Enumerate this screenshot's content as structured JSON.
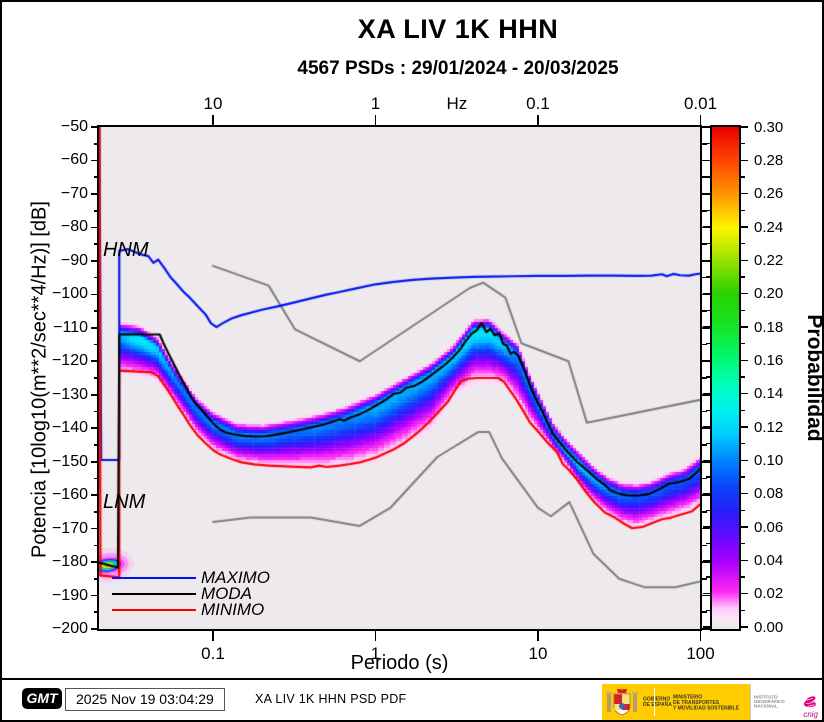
{
  "title": "XA LIV 1K HHN",
  "subtitle": "4567 PSDs : 29/01/2024 - 20/03/2025",
  "axes": {
    "top": {
      "ticks": [
        {
          "label": "10",
          "T": 0.1,
          "tick": true
        },
        {
          "label": "1",
          "T": 1,
          "tick": true
        },
        {
          "label": "Hz",
          "T": 3.17,
          "tick": false
        },
        {
          "label": "0.1",
          "T": 10,
          "tick": true
        },
        {
          "label": "0.01",
          "T": 100,
          "tick": true
        }
      ]
    },
    "bottom": {
      "label": "Periodo (s)",
      "ticks": [
        {
          "label": "0.1",
          "T": 0.1
        },
        {
          "label": "1",
          "T": 1
        },
        {
          "label": "10",
          "T": 10
        },
        {
          "label": "100",
          "T": 100
        }
      ]
    },
    "left": {
      "label": "Potencia [10log10(m**2/sec**4/Hz)] [dB]",
      "tick_values": [
        -50,
        -60,
        -70,
        -80,
        -90,
        -100,
        -110,
        -120,
        -130,
        -140,
        -150,
        -160,
        -170,
        -180,
        -190,
        -200
      ],
      "minor_step": 5
    },
    "colorbar": {
      "label": "Probabilidad",
      "min": 0.0,
      "max": 0.3,
      "tick_values": [
        0.0,
        0.02,
        0.04,
        0.06,
        0.08,
        0.1,
        0.12,
        0.14,
        0.16,
        0.18,
        0.2,
        0.22,
        0.24,
        0.26,
        0.28,
        0.3
      ],
      "minor_step": 0.01
    }
  },
  "annotations": {
    "hnm": "HNM",
    "lnm": "LNM"
  },
  "legend": [
    {
      "label": "MAXIMO",
      "color": "#0014f0"
    },
    {
      "label": "MODA",
      "color": "#000000"
    },
    {
      "label": "MINIMO",
      "color": "#fa0000"
    }
  ],
  "footer": {
    "gmt_logo": "GMT",
    "timestamp": "2025 Nov 19 03:04:29",
    "label": "XA LIV 1K HHN PSD PDF",
    "logos": {
      "gob1": "GOBIERNO",
      "gob2": "DE ESPAÑA",
      "min1": "MINISTERIO",
      "min2": "DE TRANSPORTES",
      "min3": "Y MOVILIDAD SOSTENIBLE",
      "ign1": "INSTITUTO",
      "ign2": "GEOGRÁFICO",
      "ign3": "NACIONAL",
      "cnig": "cnig"
    }
  },
  "chart_data": {
    "type": "heatmap",
    "description": "PSD probability density function (McNamara PDF) with min/mode/max curves and Peterson NHNM/NLNM noise models",
    "x_axis": {
      "unit": "s",
      "scale": "log",
      "range": [
        0.02,
        100
      ]
    },
    "y_axis": {
      "unit": "dB",
      "range": [
        -200,
        -50
      ]
    },
    "prob_range": [
      0.0,
      0.3
    ],
    "background": "#EDE9ED",
    "gray_color": "#7d7d7d",
    "colormap": [
      [
        0.0,
        [
          237,
          233,
          237
        ]
      ],
      [
        0.006,
        [
          250,
          230,
          246
        ]
      ],
      [
        0.012,
        [
          255,
          200,
          250
        ]
      ],
      [
        0.022,
        [
          255,
          40,
          245
        ]
      ],
      [
        0.04,
        [
          170,
          0,
          255
        ]
      ],
      [
        0.055,
        [
          100,
          10,
          255
        ]
      ],
      [
        0.07,
        [
          40,
          30,
          250
        ]
      ],
      [
        0.085,
        [
          10,
          70,
          250
        ]
      ],
      [
        0.1,
        [
          0,
          130,
          255
        ]
      ],
      [
        0.115,
        [
          0,
          200,
          255
        ]
      ],
      [
        0.13,
        [
          0,
          240,
          240
        ]
      ],
      [
        0.145,
        [
          0,
          255,
          190
        ]
      ],
      [
        0.16,
        [
          0,
          250,
          120
        ]
      ],
      [
        0.18,
        [
          20,
          230,
          40
        ]
      ],
      [
        0.2,
        [
          40,
          210,
          0
        ]
      ],
      [
        0.22,
        [
          150,
          225,
          0
        ]
      ],
      [
        0.24,
        [
          255,
          245,
          0
        ]
      ],
      [
        0.26,
        [
          255,
          150,
          0
        ]
      ],
      [
        0.28,
        [
          255,
          70,
          0
        ]
      ],
      [
        0.3,
        [
          235,
          0,
          0
        ]
      ]
    ],
    "hotspot": {
      "T": 0.0225,
      "value": -181,
      "peak": 0.3
    },
    "band": [
      [
        0.027,
        -112,
        -123,
        -104,
        0.11
      ],
      [
        0.035,
        -113,
        -123.5,
        -103,
        0.13
      ],
      [
        0.045,
        -116,
        -125,
        -104,
        0.12
      ],
      [
        0.06,
        -126,
        -133,
        -108,
        0.1
      ],
      [
        0.08,
        -134.5,
        -142,
        -114,
        0.095
      ],
      [
        0.1,
        -138.5,
        -146.5,
        -117,
        0.1
      ],
      [
        0.14,
        -142,
        -150,
        -121,
        0.1
      ],
      [
        0.2,
        -142.4,
        -151,
        -123.5,
        0.1
      ],
      [
        0.3,
        -141,
        -151.5,
        -125,
        0.095
      ],
      [
        0.45,
        -139.3,
        -151.4,
        -124.5,
        0.1
      ],
      [
        0.65,
        -137,
        -151,
        -122,
        0.1
      ],
      [
        1.0,
        -133.3,
        -148.8,
        -116.5,
        0.11
      ],
      [
        1.5,
        -128.5,
        -144.5,
        -111,
        0.11
      ],
      [
        2.2,
        -124,
        -139.5,
        -105,
        0.11
      ],
      [
        3.0,
        -118.8,
        -130,
        -100,
        0.115
      ],
      [
        4.0,
        -111.2,
        -125.2,
        -96.5,
        0.125
      ],
      [
        5.0,
        -110.8,
        -125,
        -95.8,
        0.125
      ],
      [
        6.2,
        -115,
        -126.2,
        -96.5,
        0.115
      ],
      [
        7.5,
        -118.1,
        -132,
        -97.5,
        0.1
      ],
      [
        9.0,
        -127.7,
        -138.2,
        -101,
        0.095
      ],
      [
        10.5,
        -134.5,
        -142,
        -107,
        0.1
      ],
      [
        12.5,
        -142,
        -146.5,
        -114,
        0.105
      ],
      [
        15,
        -146.8,
        -151,
        -121,
        0.115
      ],
      [
        18,
        -150.8,
        -157,
        -126,
        0.12
      ],
      [
        22,
        -154.8,
        -162,
        -131,
        0.11
      ],
      [
        27,
        -158,
        -165.8,
        -134.5,
        0.1
      ],
      [
        33,
        -159.8,
        -168.5,
        -136.5,
        0.095
      ],
      [
        40,
        -160.1,
        -169.9,
        -137.5,
        0.09
      ],
      [
        50,
        -159.2,
        -168.4,
        -137.5,
        0.09
      ],
      [
        65,
        -156.6,
        -166.7,
        -136.5,
        0.088
      ],
      [
        80,
        -155.3,
        -165.3,
        -135.5,
        0.088
      ],
      [
        100,
        -152,
        -162.7,
        -132.5,
        0.092
      ]
    ],
    "series": {
      "maximo": [
        [
          0.02,
          -50
        ],
        [
          0.0205,
          -149.5
        ],
        [
          0.0265,
          -149.5
        ],
        [
          0.0265,
          -87
        ],
        [
          0.03,
          -86.5
        ],
        [
          0.034,
          -87.6
        ],
        [
          0.037,
          -88.2
        ],
        [
          0.04,
          -88.6
        ],
        [
          0.043,
          -90.6
        ],
        [
          0.046,
          -89.6
        ],
        [
          0.05,
          -92
        ],
        [
          0.055,
          -95
        ],
        [
          0.06,
          -97
        ],
        [
          0.066,
          -99.3
        ],
        [
          0.072,
          -101
        ],
        [
          0.08,
          -103.4
        ],
        [
          0.09,
          -106
        ],
        [
          0.097,
          -108.6
        ],
        [
          0.105,
          -109.8
        ],
        [
          0.115,
          -108.6
        ],
        [
          0.13,
          -107.2
        ],
        [
          0.15,
          -106.2
        ],
        [
          0.2,
          -104.6
        ],
        [
          0.25,
          -103.6
        ],
        [
          0.3,
          -102.7
        ],
        [
          0.4,
          -101.2
        ],
        [
          0.5,
          -100.1
        ],
        [
          0.6,
          -99.3
        ],
        [
          0.7,
          -98.6
        ],
        [
          0.8,
          -98
        ],
        [
          1,
          -97
        ],
        [
          1.3,
          -96.3
        ],
        [
          1.7,
          -95.7
        ],
        [
          2.2,
          -95.3
        ],
        [
          3,
          -95
        ],
        [
          4,
          -94.8
        ],
        [
          5,
          -94.7
        ],
        [
          7,
          -94.6
        ],
        [
          10,
          -94.5
        ],
        [
          15,
          -94.5
        ],
        [
          20,
          -94.4
        ],
        [
          30,
          -94.4
        ],
        [
          40,
          -94.5
        ],
        [
          50,
          -94.4
        ],
        [
          58,
          -94
        ],
        [
          62,
          -94.6
        ],
        [
          68,
          -93.9
        ],
        [
          75,
          -94.3
        ],
        [
          85,
          -94.4
        ],
        [
          93,
          -94
        ],
        [
          100,
          -93.8
        ]
      ],
      "moda": [
        [
          0.02,
          -180.2
        ],
        [
          0.026,
          -181.6
        ],
        [
          0.0265,
          -112
        ],
        [
          0.047,
          -112
        ],
        [
          0.05,
          -115
        ],
        [
          0.053,
          -117.5
        ],
        [
          0.057,
          -120.5
        ],
        [
          0.062,
          -124
        ],
        [
          0.067,
          -127
        ],
        [
          0.072,
          -130
        ],
        [
          0.078,
          -132.5
        ],
        [
          0.085,
          -134.5
        ],
        [
          0.092,
          -136.5
        ],
        [
          0.1,
          -138.5
        ],
        [
          0.11,
          -140.3
        ],
        [
          0.12,
          -141.3
        ],
        [
          0.135,
          -141.9
        ],
        [
          0.155,
          -142.3
        ],
        [
          0.18,
          -142.5
        ],
        [
          0.21,
          -142.4
        ],
        [
          0.24,
          -142
        ],
        [
          0.28,
          -141.4
        ],
        [
          0.33,
          -140.7
        ],
        [
          0.4,
          -139.8
        ],
        [
          0.48,
          -138.9
        ],
        [
          0.55,
          -138
        ],
        [
          0.6,
          -137.3
        ],
        [
          0.64,
          -137.8
        ],
        [
          0.7,
          -136.8
        ],
        [
          0.8,
          -135.8
        ],
        [
          0.9,
          -134.6
        ],
        [
          1,
          -133.3
        ],
        [
          1.15,
          -131.6
        ],
        [
          1.3,
          -129.7
        ],
        [
          1.42,
          -129.4
        ],
        [
          1.55,
          -127.9
        ],
        [
          1.75,
          -127.3
        ],
        [
          1.95,
          -126
        ],
        [
          2.15,
          -124.5
        ],
        [
          2.4,
          -122.8
        ],
        [
          2.7,
          -120.9
        ],
        [
          3,
          -118.8
        ],
        [
          3.3,
          -116.6
        ],
        [
          3.6,
          -113.9
        ],
        [
          3.9,
          -111.8
        ],
        [
          4.2,
          -110.7
        ],
        [
          4.5,
          -108.5
        ],
        [
          4.8,
          -111.3
        ],
        [
          5.1,
          -110.3
        ],
        [
          5.4,
          -112.2
        ],
        [
          5.8,
          -111.8
        ],
        [
          6.1,
          -114.8
        ],
        [
          6.4,
          -115.2
        ],
        [
          6.8,
          -117.8
        ],
        [
          7.1,
          -117.2
        ],
        [
          7.5,
          -118.1
        ],
        [
          8.2,
          -122.3
        ],
        [
          9,
          -127.7
        ],
        [
          9.7,
          -131.3
        ],
        [
          10.7,
          -135.2
        ],
        [
          11.4,
          -138.2
        ],
        [
          12.4,
          -141.8
        ],
        [
          13.6,
          -144.2
        ],
        [
          15.3,
          -147.2
        ],
        [
          17.4,
          -150.1
        ],
        [
          20,
          -152.6
        ],
        [
          23,
          -155.2
        ],
        [
          26,
          -157.1
        ],
        [
          28,
          -158.6
        ],
        [
          32,
          -159.7
        ],
        [
          36,
          -160.1
        ],
        [
          42,
          -160.1
        ],
        [
          48,
          -159.7
        ],
        [
          56,
          -158.2
        ],
        [
          64,
          -156.6
        ],
        [
          74,
          -156.1
        ],
        [
          85,
          -155.2
        ],
        [
          92,
          -153.8
        ],
        [
          100,
          -152
        ]
      ],
      "minimo": [
        [
          0.02,
          -50
        ],
        [
          0.0203,
          -184
        ],
        [
          0.0265,
          -184.6
        ],
        [
          0.0265,
          -122.8
        ],
        [
          0.042,
          -123.3
        ],
        [
          0.046,
          -124.5
        ],
        [
          0.05,
          -127
        ],
        [
          0.055,
          -130
        ],
        [
          0.06,
          -133
        ],
        [
          0.066,
          -136
        ],
        [
          0.072,
          -139
        ],
        [
          0.08,
          -142
        ],
        [
          0.09,
          -144.5
        ],
        [
          0.1,
          -146.5
        ],
        [
          0.11,
          -147.8
        ],
        [
          0.13,
          -149.2
        ],
        [
          0.15,
          -150.2
        ],
        [
          0.18,
          -150.8
        ],
        [
          0.22,
          -151.2
        ],
        [
          0.3,
          -151.5
        ],
        [
          0.4,
          -151.7
        ],
        [
          0.45,
          -151.2
        ],
        [
          0.5,
          -151.6
        ],
        [
          0.6,
          -151.2
        ],
        [
          0.7,
          -150.7
        ],
        [
          0.8,
          -150.2
        ],
        [
          0.9,
          -149.5
        ],
        [
          1,
          -148.8
        ],
        [
          1.15,
          -147.5
        ],
        [
          1.3,
          -146.3
        ],
        [
          1.5,
          -144.5
        ],
        [
          1.8,
          -141.5
        ],
        [
          2.1,
          -138.5
        ],
        [
          2.4,
          -135.5
        ],
        [
          2.8,
          -132
        ],
        [
          3.1,
          -128.5
        ],
        [
          3.35,
          -126
        ],
        [
          3.7,
          -125.2
        ],
        [
          4.2,
          -125
        ],
        [
          5.7,
          -125
        ],
        [
          6.2,
          -126.2
        ],
        [
          6.7,
          -128.6
        ],
        [
          7.4,
          -131.6
        ],
        [
          8.2,
          -135.2
        ],
        [
          8.9,
          -138.2
        ],
        [
          10.1,
          -141.2
        ],
        [
          11.4,
          -144.2
        ],
        [
          13.1,
          -147.2
        ],
        [
          14.2,
          -150.7
        ],
        [
          15.5,
          -152.5
        ],
        [
          17.3,
          -155.2
        ],
        [
          19.4,
          -158.6
        ],
        [
          22.3,
          -162.2
        ],
        [
          25.8,
          -165.2
        ],
        [
          29.7,
          -166.7
        ],
        [
          34.3,
          -168.7
        ],
        [
          38,
          -169.9
        ],
        [
          44,
          -169.5
        ],
        [
          50,
          -168.4
        ],
        [
          58,
          -167.2
        ],
        [
          66,
          -166.7
        ],
        [
          77,
          -165.7
        ],
        [
          88,
          -164.9
        ],
        [
          100,
          -162.7
        ]
      ],
      "nhnm": [
        [
          0.1,
          -91.5
        ],
        [
          0.22,
          -97.4
        ],
        [
          0.32,
          -110.5
        ],
        [
          0.8,
          -120
        ],
        [
          3.8,
          -98.1
        ],
        [
          4.6,
          -96.5
        ],
        [
          6.3,
          -101
        ],
        [
          7.9,
          -114.6
        ],
        [
          15.4,
          -120
        ],
        [
          20,
          -138.4
        ],
        [
          100,
          -131.5
        ]
      ],
      "nlnm": [
        [
          0.1,
          -168
        ],
        [
          0.17,
          -166.7
        ],
        [
          0.4,
          -166.7
        ],
        [
          0.8,
          -169.2
        ],
        [
          1.24,
          -163.7
        ],
        [
          2.4,
          -148.6
        ],
        [
          4.3,
          -141.1
        ],
        [
          5,
          -141.1
        ],
        [
          6,
          -149
        ],
        [
          10,
          -163.8
        ],
        [
          12,
          -166.3
        ],
        [
          15.6,
          -162.1
        ],
        [
          21.9,
          -177.5
        ],
        [
          31.6,
          -185
        ],
        [
          45,
          -187.5
        ],
        [
          70,
          -187.5
        ],
        [
          100,
          -185.8
        ]
      ]
    }
  }
}
